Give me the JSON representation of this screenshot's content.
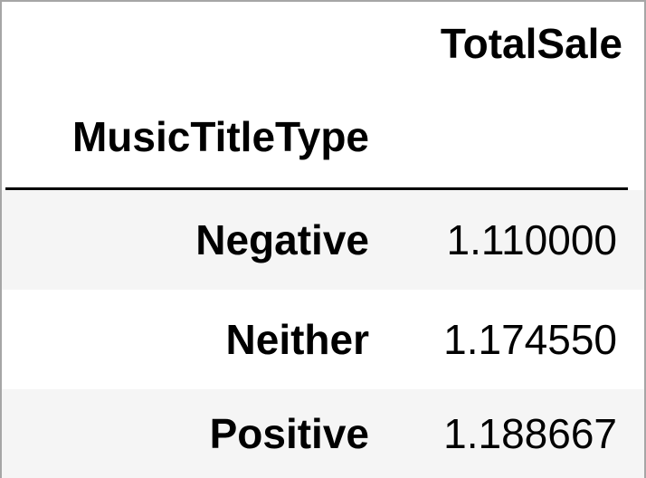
{
  "table": {
    "columns": [
      "TotalSale"
    ],
    "index_name": "MusicTitleType",
    "rows": [
      {
        "label": "Negative",
        "value": "1.110000"
      },
      {
        "label": "Neither",
        "value": "1.174550"
      },
      {
        "label": "Positive",
        "value": "1.188667"
      }
    ]
  },
  "colors": {
    "stripe": "#f5f5f5",
    "border": "#a6a6a6",
    "text": "#000000"
  }
}
